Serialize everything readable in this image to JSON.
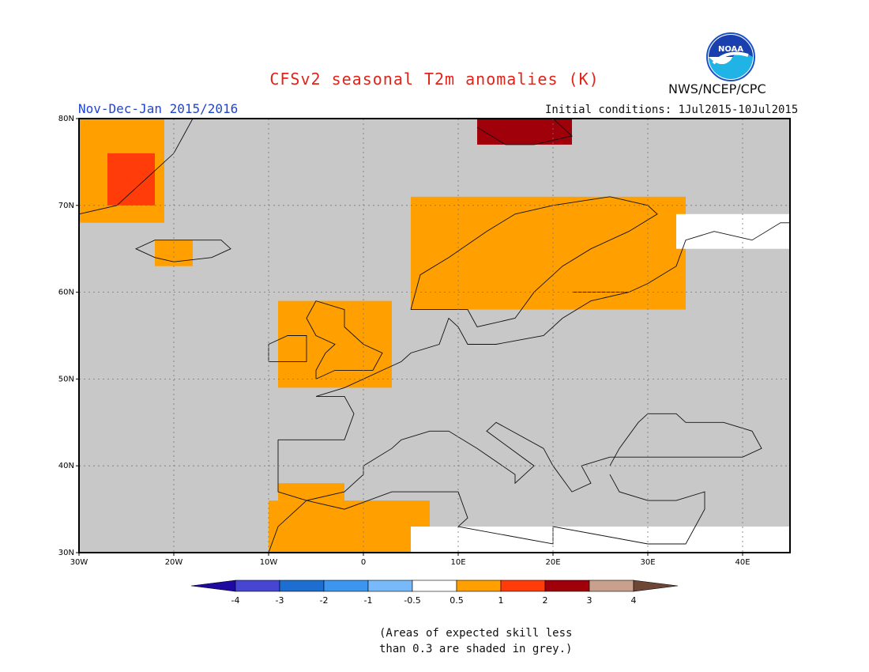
{
  "title": "CFSv2 seasonal T2m anomalies (K)",
  "season": "Nov-Dec-Jan 2015/2016",
  "initial_conditions": "Initial conditions: 1Jul2015-10Jul2015",
  "agency": "NWS/NCEP/CPC",
  "logo_text": "NOAA",
  "map": {
    "lon_range": [
      -30,
      45
    ],
    "lat_range": [
      30,
      80
    ],
    "lon_ticks": [
      {
        "value": -30,
        "label": "30W"
      },
      {
        "value": -20,
        "label": "20W"
      },
      {
        "value": -10,
        "label": "10W"
      },
      {
        "value": 0,
        "label": "0"
      },
      {
        "value": 10,
        "label": "10E"
      },
      {
        "value": 20,
        "label": "20E"
      },
      {
        "value": 30,
        "label": "30E"
      },
      {
        "value": 40,
        "label": "40E"
      }
    ],
    "lat_ticks": [
      {
        "value": 30,
        "label": "30N"
      },
      {
        "value": 40,
        "label": "40N"
      },
      {
        "value": 50,
        "label": "50N"
      },
      {
        "value": 60,
        "label": "60N"
      },
      {
        "value": 70,
        "label": "70N"
      },
      {
        "value": 80,
        "label": "80N"
      }
    ],
    "background_color": "#c8c8c8",
    "grid": "dotted",
    "regions": [
      {
        "name": "Greenland",
        "category": "0.5-1",
        "lon": [
          -30,
          -21
        ],
        "lat": [
          68,
          80
        ]
      },
      {
        "name": "Greenland east coast",
        "category": "1-2",
        "lon": [
          -27,
          -22
        ],
        "lat": [
          70,
          76
        ]
      },
      {
        "name": "Iceland",
        "category": "0.5-1",
        "lon": [
          -22,
          -18
        ],
        "lat": [
          63,
          66
        ]
      },
      {
        "name": "Scandinavia",
        "category": "0.5-1",
        "lon": [
          5,
          34
        ],
        "lat": [
          58,
          71
        ]
      },
      {
        "name": "British Isles",
        "category": "0.5-1",
        "lon": [
          -9,
          3
        ],
        "lat": [
          49,
          59
        ]
      },
      {
        "name": "Iberia south",
        "category": "0.5-1",
        "lon": [
          -9,
          -2
        ],
        "lat": [
          36,
          38
        ]
      },
      {
        "name": "Northwest Africa",
        "category": "0.5-1",
        "lon": [
          -10,
          7
        ],
        "lat": [
          30,
          36
        ]
      },
      {
        "name": "Svalbard",
        "category": "2-3",
        "lon": [
          12,
          22
        ],
        "lat": [
          77,
          80
        ]
      },
      {
        "name": "North Africa low skill",
        "category": "-0.5-0.5",
        "lon": [
          5,
          45
        ],
        "lat": [
          30,
          33
        ]
      },
      {
        "name": "Northwest Russia",
        "category": "-0.5-0.5",
        "lon": [
          33,
          45
        ],
        "lat": [
          65,
          69
        ]
      }
    ]
  },
  "colorbar": {
    "colors": [
      "#1e0aa0",
      "#4646d2",
      "#1e6ed2",
      "#3c96f0",
      "#78b9fa",
      "#ffffff",
      "#ffa000",
      "#ff3c0a",
      "#a0000a",
      "#c8a08c",
      "#6e4636"
    ],
    "labels": [
      "-4",
      "-3",
      "-2",
      "-1",
      "-0.5",
      "0.5",
      "1",
      "2",
      "3",
      "4"
    ]
  },
  "footnote": [
    "(Areas of expected skill less",
    "than 0.3 are shaded in grey.)"
  ]
}
